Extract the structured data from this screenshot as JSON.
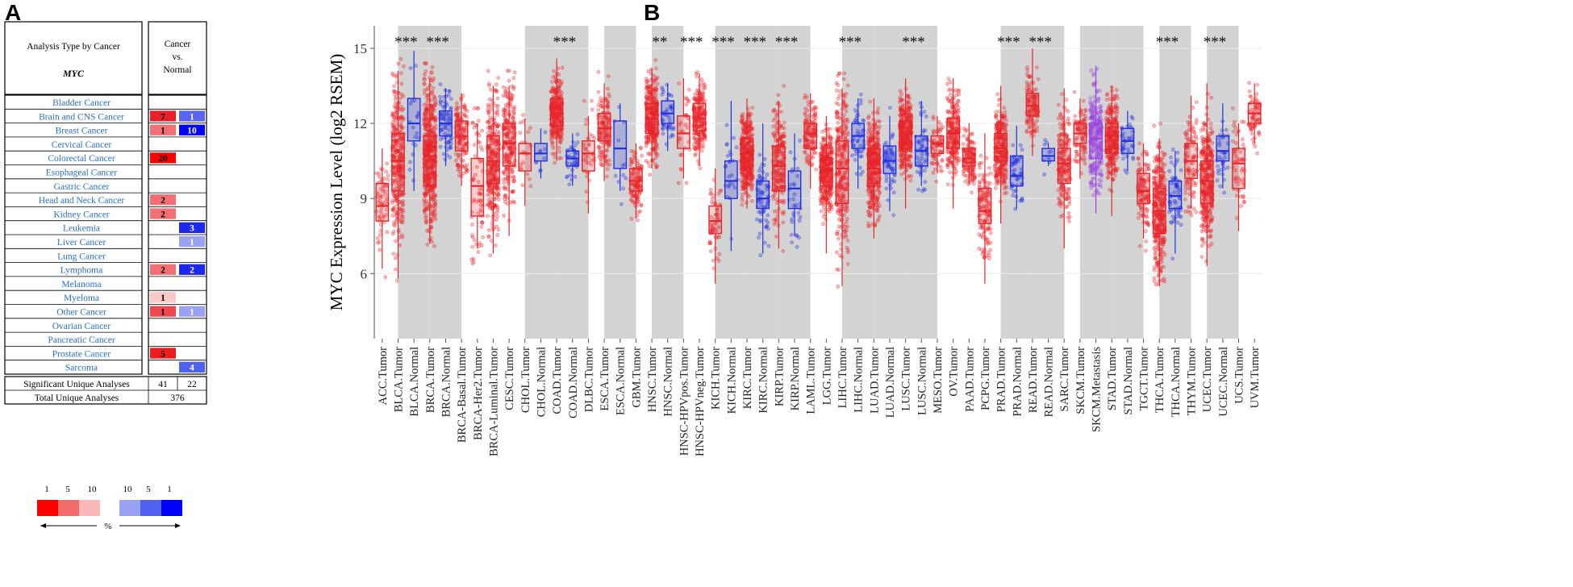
{
  "panel_a": {
    "label": "A",
    "header_left": "Analysis Type by Cancer",
    "header_gene": "MYC",
    "header_right": [
      "Cancer",
      "vs.",
      "Normal"
    ],
    "cancers": [
      {
        "name": "Bladder Cancer",
        "up": null,
        "down": null
      },
      {
        "name": "Brain and CNS Cancer",
        "up": 7,
        "down": 1
      },
      {
        "name": "Breast Cancer",
        "up": 1,
        "down": 10
      },
      {
        "name": "Cervical Cancer",
        "up": null,
        "down": null
      },
      {
        "name": "Colorectal Cancer",
        "up": 20,
        "down": null
      },
      {
        "name": "Esophageal Cancer",
        "up": null,
        "down": null
      },
      {
        "name": "Gastric Cancer",
        "up": null,
        "down": null
      },
      {
        "name": "Head and Neck Cancer",
        "up": 2,
        "down": null
      },
      {
        "name": "Kidney Cancer",
        "up": 2,
        "down": null
      },
      {
        "name": "Leukemia",
        "up": null,
        "down": 3
      },
      {
        "name": "Liver Cancer",
        "up": null,
        "down": 1
      },
      {
        "name": "Lung Cancer",
        "up": null,
        "down": null
      },
      {
        "name": "Lymphoma",
        "up": 2,
        "down": 2
      },
      {
        "name": "Melanoma",
        "up": null,
        "down": null
      },
      {
        "name": "Myeloma",
        "up": 1,
        "down": null
      },
      {
        "name": "Other Cancer",
        "up": 1,
        "down": 1
      },
      {
        "name": "Ovarian Cancer",
        "up": null,
        "down": null
      },
      {
        "name": "Pancreatic Cancer",
        "up": null,
        "down": null
      },
      {
        "name": "Prostate Cancer",
        "up": 5,
        "down": null
      },
      {
        "name": "Sarcoma",
        "up": null,
        "down": 4
      }
    ],
    "up_shades": {
      "Brain and CNS Cancer": "#e8202a",
      "Breast Cancer": "#f27075",
      "Colorectal Cancer": "#ff0000",
      "Head and Neck Cancer": "#f27075",
      "Kidney Cancer": "#f27075",
      "Lymphoma": "#f27075",
      "Myeloma": "#fbc8c8",
      "Other Cancer": "#f04a50",
      "Prostate Cancer": "#ee1c1c"
    },
    "down_shades": {
      "Brain and CNS Cancer": "#5a66f0",
      "Breast Cancer": "#0000ff",
      "Leukemia": "#1c28f0",
      "Liver Cancer": "#9aa2f6",
      "Lymphoma": "#1c28f0",
      "Other Cancer": "#9aa2f6",
      "Sarcoma": "#5060f0"
    },
    "significant_label": "Significant Unique Analyses",
    "significant_up": "41",
    "significant_down": "22",
    "total_label": "Total Unique Analyses",
    "total_value": "376",
    "legend": {
      "up_ticks": [
        "1",
        "5",
        "10"
      ],
      "down_ticks": [
        "10",
        "5",
        "1"
      ],
      "up_colors": [
        "#ff0000",
        "#f26a6a",
        "#fbb8b8"
      ],
      "down_colors": [
        "#9aa2f6",
        "#5060f0",
        "#0000ff"
      ],
      "unit": "%"
    }
  },
  "chart_data": {
    "label": "B",
    "type": "box",
    "ylabel": "MYC Expression Level (log2 RSEM)",
    "yticks": [
      6,
      9,
      12,
      15
    ],
    "ylim": [
      3.4,
      15.9
    ],
    "colors": {
      "tumor": "#e8262a",
      "normal": "#2330e0",
      "metastasis": "#9a44e0",
      "shade": "#d3d3d3"
    },
    "categories": [
      "ACC.Tumor",
      "BLCA.Tumor",
      "BLCA.Normal",
      "BRCA.Tumor",
      "BRCA.Normal",
      "BRCA-Basal.Tumor",
      "BRCA-Her2.Tumor",
      "BRCA-Luminal.Tumor",
      "CESC.Tumor",
      "CHOL.Tumor",
      "CHOL.Normal",
      "COAD.Tumor",
      "COAD.Normal",
      "DLBC.Tumor",
      "ESCA.Tumor",
      "ESCA.Normal",
      "GBM.Tumor",
      "HNSC.Tumor",
      "HNSC.Normal",
      "HNSC-HPVpos.Tumor",
      "HNSC-HPVneg.Tumor",
      "KICH.Tumor",
      "KICH.Normal",
      "KIRC.Tumor",
      "KIRC.Normal",
      "KIRP.Tumor",
      "KIRP.Normal",
      "LAML.Tumor",
      "LGG.Tumor",
      "LIHC.Tumor",
      "LIHC.Normal",
      "LUAD.Tumor",
      "LUAD.Normal",
      "LUSC.Tumor",
      "LUSC.Normal",
      "MESO.Tumor",
      "OV.Tumor",
      "PAAD.Tumor",
      "PCPG.Tumor",
      "PRAD.Tumor",
      "PRAD.Normal",
      "READ.Tumor",
      "READ.Normal",
      "SARC.Tumor",
      "SKCM.Tumor",
      "SKCM.Metastasis",
      "STAD.Tumor",
      "STAD.Normal",
      "TGCT.Tumor",
      "THCA.Tumor",
      "THCA.Normal",
      "THYM.Tumor",
      "UCEC.Tumor",
      "UCEC.Normal",
      "UCS.Tumor",
      "UVM.Tumor"
    ],
    "kinds": [
      "T",
      "T",
      "N",
      "T",
      "N",
      "T",
      "T",
      "T",
      "T",
      "T",
      "N",
      "T",
      "N",
      "T",
      "T",
      "N",
      "T",
      "T",
      "N",
      "T",
      "T",
      "T",
      "N",
      "T",
      "N",
      "T",
      "N",
      "T",
      "T",
      "T",
      "N",
      "T",
      "N",
      "T",
      "N",
      "T",
      "T",
      "T",
      "T",
      "T",
      "N",
      "T",
      "N",
      "T",
      "T",
      "M",
      "T",
      "N",
      "T",
      "T",
      "N",
      "T",
      "T",
      "N",
      "T",
      "T"
    ],
    "boxes": [
      [
        6.2,
        8.1,
        8.7,
        9.6,
        11.0
      ],
      [
        5.8,
        9.3,
        10.5,
        11.6,
        14.1
      ],
      [
        9.3,
        11.3,
        12.0,
        13.0,
        14.9
      ],
      [
        7.2,
        9.5,
        10.7,
        11.5,
        13.8
      ],
      [
        10.3,
        11.5,
        12.0,
        12.5,
        13.4
      ],
      [
        9.5,
        10.9,
        11.5,
        12.1,
        13.2
      ],
      [
        7.0,
        8.3,
        9.5,
        10.6,
        12.0
      ],
      [
        6.8,
        9.6,
        10.5,
        11.5,
        13.5
      ],
      [
        7.5,
        10.3,
        11.2,
        12.0,
        13.5
      ],
      [
        8.7,
        10.1,
        10.8,
        11.2,
        12.2
      ],
      [
        9.8,
        10.5,
        10.8,
        11.2,
        11.8
      ],
      [
        10.5,
        11.9,
        12.4,
        13.0,
        14.6
      ],
      [
        9.5,
        10.3,
        10.6,
        10.9,
        11.6
      ],
      [
        8.4,
        10.1,
        10.8,
        11.3,
        12.3
      ],
      [
        9.7,
        11.3,
        11.8,
        12.4,
        13.6
      ],
      [
        9.3,
        10.2,
        11.0,
        12.1,
        12.8
      ],
      [
        8.2,
        9.3,
        9.7,
        10.2,
        11.2
      ],
      [
        10.2,
        11.6,
        12.2,
        12.8,
        14.2
      ],
      [
        10.9,
        12.0,
        12.4,
        12.9,
        13.6
      ],
      [
        9.8,
        11.0,
        11.6,
        12.3,
        13.8
      ],
      [
        10.3,
        11.7,
        12.2,
        12.8,
        14.0
      ],
      [
        5.6,
        7.6,
        8.1,
        8.7,
        10.2
      ],
      [
        6.9,
        9.0,
        9.7,
        10.5,
        12.9
      ],
      [
        8.6,
        10.3,
        10.8,
        11.4,
        13.0
      ],
      [
        6.8,
        8.6,
        9.0,
        9.7,
        12.0
      ],
      [
        7.0,
        9.3,
        10.3,
        11.1,
        12.9
      ],
      [
        7.5,
        8.6,
        9.4,
        10.1,
        11.6
      ],
      [
        9.4,
        11.0,
        11.6,
        12.0,
        13.2
      ],
      [
        6.8,
        9.5,
        10.1,
        10.6,
        12.3
      ],
      [
        5.5,
        8.8,
        10.2,
        11.3,
        13.4
      ],
      [
        9.4,
        11.0,
        11.5,
        12.0,
        13.0
      ],
      [
        7.4,
        9.6,
        10.2,
        11.0,
        13.0
      ],
      [
        8.5,
        10.0,
        10.5,
        11.1,
        12.3
      ],
      [
        8.6,
        11.0,
        11.6,
        12.1,
        13.8
      ],
      [
        9.5,
        10.3,
        10.9,
        11.5,
        12.9
      ],
      [
        10.0,
        10.8,
        11.2,
        11.5,
        12.3
      ],
      [
        8.6,
        11.0,
        11.6,
        12.2,
        13.8
      ],
      [
        9.6,
        10.3,
        10.6,
        11.0,
        12.0
      ],
      [
        5.6,
        8.0,
        8.5,
        9.4,
        11.6
      ],
      [
        8.0,
        10.5,
        11.0,
        11.6,
        13.5
      ],
      [
        8.6,
        9.5,
        9.9,
        10.7,
        11.9
      ],
      [
        10.7,
        12.3,
        12.7,
        13.2,
        15.0
      ],
      [
        10.3,
        10.5,
        10.7,
        11.0,
        11.2
      ],
      [
        7.0,
        9.6,
        10.4,
        11.0,
        13.4
      ],
      [
        9.8,
        11.2,
        11.6,
        12.0,
        13.0
      ],
      [
        8.4,
        10.6,
        11.4,
        12.0,
        14.3
      ],
      [
        8.3,
        10.8,
        11.5,
        12.0,
        13.5
      ],
      [
        10.1,
        10.8,
        11.3,
        11.8,
        12.5
      ],
      [
        7.4,
        8.8,
        9.3,
        10.0,
        11.2
      ],
      [
        5.5,
        7.6,
        8.5,
        9.4,
        11.4
      ],
      [
        6.8,
        8.6,
        9.1,
        9.7,
        10.9
      ],
      [
        8.6,
        9.8,
        10.5,
        11.2,
        13.1
      ],
      [
        6.3,
        8.8,
        9.7,
        10.5,
        13.6
      ],
      [
        9.4,
        10.5,
        10.9,
        11.5,
        12.8
      ],
      [
        7.7,
        9.4,
        10.4,
        11.0,
        12.0
      ],
      [
        11.2,
        12.0,
        12.4,
        12.8,
        13.6
      ]
    ],
    "point_counts": [
      60,
      320,
      20,
      480,
      75,
      140,
      70,
      320,
      230,
      20,
      9,
      290,
      40,
      35,
      150,
      12,
      120,
      330,
      45,
      30,
      220,
      60,
      25,
      380,
      70,
      220,
      32,
      130,
      360,
      280,
      50,
      370,
      60,
      360,
      55,
      70,
      240,
      140,
      140,
      300,
      50,
      130,
      10,
      200,
      90,
      250,
      280,
      35,
      120,
      360,
      60,
      100,
      350,
      35,
      55,
      70
    ],
    "shaded_columns": [
      2,
      4,
      10,
      12,
      15,
      18,
      22,
      24,
      26,
      30,
      32,
      34,
      40,
      42,
      45,
      47,
      50,
      53
    ],
    "significance": [
      {
        "column": 2,
        "text": "***"
      },
      {
        "column": 4,
        "text": "***"
      },
      {
        "column": 12,
        "text": "***"
      },
      {
        "column": 18,
        "text": "**"
      },
      {
        "column": 20,
        "text": "***"
      },
      {
        "column": 22,
        "text": "***"
      },
      {
        "column": 24,
        "text": "***"
      },
      {
        "column": 26,
        "text": "***"
      },
      {
        "column": 30,
        "text": "***"
      },
      {
        "column": 34,
        "text": "***"
      },
      {
        "column": 40,
        "text": "***"
      },
      {
        "column": 42,
        "text": "***"
      },
      {
        "column": 50,
        "text": "***"
      },
      {
        "column": 53,
        "text": "***"
      }
    ]
  }
}
